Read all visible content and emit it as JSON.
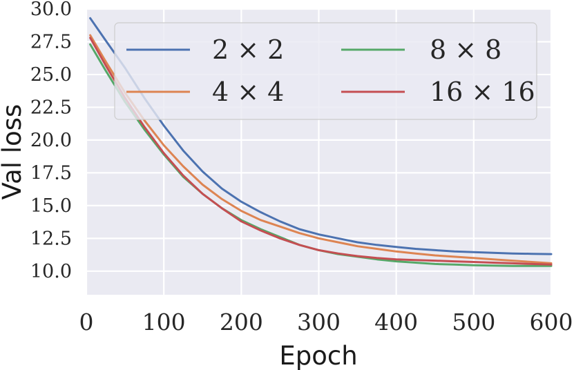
{
  "chart_data": {
    "type": "line",
    "xlabel": "Epoch",
    "ylabel": "Val loss",
    "xlim": [
      0,
      600
    ],
    "ylim": [
      8.2,
      30.0
    ],
    "x_ticks": [
      0,
      100,
      200,
      300,
      400,
      500,
      600
    ],
    "y_ticks": [
      10.0,
      12.5,
      15.0,
      17.5,
      20.0,
      22.5,
      25.0,
      27.5,
      30.0
    ],
    "x_tick_labels": [
      "0",
      "100",
      "200",
      "300",
      "400",
      "500",
      "600"
    ],
    "y_tick_labels": [
      "10.0",
      "12.5",
      "15.0",
      "17.5",
      "20.0",
      "22.5",
      "25.0",
      "27.5",
      "30.0"
    ],
    "grid": true,
    "background": "#eaeaf2",
    "legend_position": "top-right",
    "legend_columns": 2,
    "x": [
      5,
      25,
      50,
      75,
      100,
      125,
      150,
      175,
      200,
      225,
      250,
      275,
      300,
      325,
      350,
      375,
      400,
      425,
      450,
      475,
      500,
      525,
      550,
      575,
      600
    ],
    "series": [
      {
        "name": "2 × 2",
        "color": "#4c72b0",
        "values": [
          29.3,
          27.6,
          25.5,
          23.2,
          21.1,
          19.2,
          17.6,
          16.3,
          15.3,
          14.5,
          13.8,
          13.2,
          12.8,
          12.5,
          12.2,
          12.0,
          11.85,
          11.7,
          11.6,
          11.5,
          11.45,
          11.4,
          11.35,
          11.32,
          11.3
        ]
      },
      {
        "name": "4 × 4",
        "color": "#dd8452",
        "values": [
          28.0,
          26.0,
          23.6,
          21.5,
          19.6,
          18.0,
          16.6,
          15.5,
          14.6,
          13.9,
          13.4,
          12.9,
          12.5,
          12.2,
          11.9,
          11.7,
          11.5,
          11.35,
          11.2,
          11.1,
          11.0,
          10.9,
          10.8,
          10.7,
          10.6
        ]
      },
      {
        "name": "8 × 8",
        "color": "#55a868",
        "values": [
          27.3,
          25.3,
          22.9,
          20.8,
          18.9,
          17.2,
          15.9,
          14.8,
          13.9,
          13.2,
          12.6,
          12.0,
          11.6,
          11.3,
          11.1,
          10.9,
          10.75,
          10.65,
          10.55,
          10.5,
          10.45,
          10.42,
          10.4,
          10.4,
          10.4
        ]
      },
      {
        "name": "16 × 16",
        "color": "#c44e52",
        "values": [
          27.8,
          25.7,
          23.2,
          21.0,
          19.0,
          17.3,
          15.9,
          14.8,
          13.8,
          13.1,
          12.5,
          12.0,
          11.6,
          11.35,
          11.15,
          11.0,
          10.9,
          10.85,
          10.8,
          10.75,
          10.7,
          10.65,
          10.6,
          10.55,
          10.5
        ]
      }
    ]
  }
}
